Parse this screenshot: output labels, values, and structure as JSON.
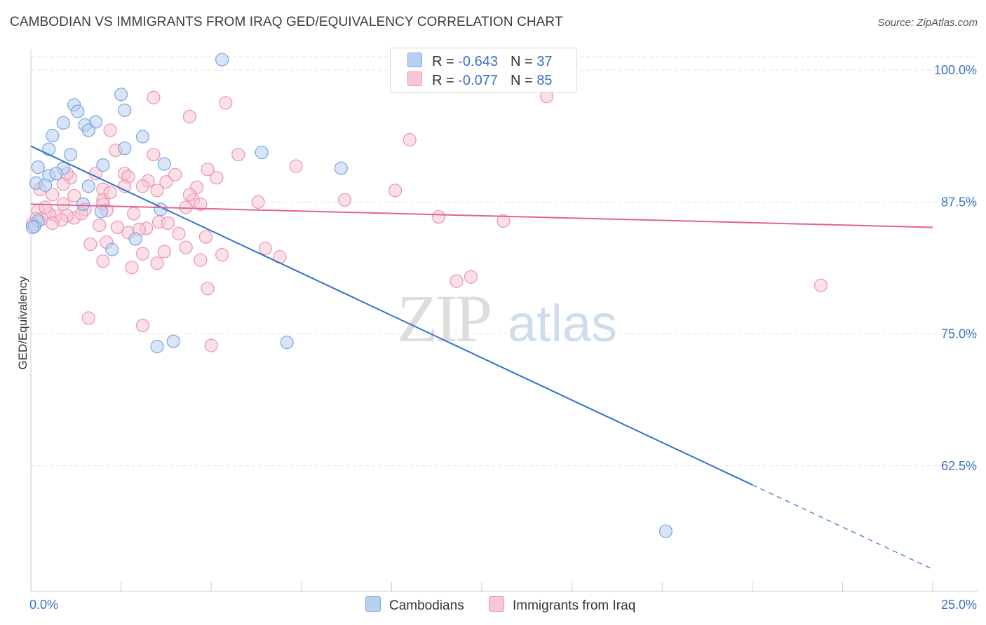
{
  "title": "CAMBODIAN VS IMMIGRANTS FROM IRAQ GED/EQUIVALENCY CORRELATION CHART",
  "source": "Source: ZipAtlas.com",
  "watermark": {
    "zip": "ZIP",
    "atlas": "atlas"
  },
  "colors": {
    "blue_fill": "#b8d0f2",
    "blue_stroke": "#7aa6df",
    "blue_line": "#2f72cc",
    "pink_fill": "#f8c6d6",
    "pink_stroke": "#ea93b0",
    "pink_line": "#e4628c",
    "tick_label": "#3a74c4",
    "grid": "#e3e3e3"
  },
  "legend": {
    "rows": [
      {
        "r_label": "R = ",
        "r_value": "-0.643",
        "n_label": "N = ",
        "n_value": "37"
      },
      {
        "r_label": "R = ",
        "r_value": "-0.077",
        "n_label": "N = ",
        "n_value": "85"
      }
    ]
  },
  "chart_data": {
    "type": "scatter",
    "title": "CAMBODIAN VS IMMIGRANTS FROM IRAQ GED/EQUIVALENCY CORRELATION CHART",
    "xlabel": "",
    "ylabel": "GED/Equivalency",
    "xlim": [
      0,
      25
    ],
    "ylim": [
      50.6,
      102
    ],
    "x_tick_labels": [
      "0.0%",
      "25.0%"
    ],
    "y_ticks": [
      62.5,
      75.0,
      87.5,
      100.0
    ],
    "y_tick_labels": [
      "62.5%",
      "75.0%",
      "87.5%",
      "100.0%"
    ],
    "grid": true,
    "legend_position": "top-center",
    "series": [
      {
        "name": "Cambodians",
        "color": "#b8d0f2",
        "trend": {
          "x": [
            0,
            20
          ],
          "y": [
            92.8,
            60.7
          ],
          "dashed_to": [
            25,
            52.7
          ]
        },
        "points": [
          [
            5.3,
            101.0
          ],
          [
            2.5,
            97.7
          ],
          [
            1.2,
            96.7
          ],
          [
            2.6,
            96.2
          ],
          [
            1.3,
            96.1
          ],
          [
            1.8,
            95.1
          ],
          [
            0.9,
            95.0
          ],
          [
            1.5,
            94.8
          ],
          [
            1.6,
            94.3
          ],
          [
            0.6,
            93.8
          ],
          [
            3.1,
            93.7
          ],
          [
            0.5,
            92.5
          ],
          [
            2.6,
            92.6
          ],
          [
            6.4,
            92.2
          ],
          [
            1.1,
            92.0
          ],
          [
            3.7,
            91.1
          ],
          [
            2.0,
            91.0
          ],
          [
            8.6,
            90.7
          ],
          [
            0.2,
            90.8
          ],
          [
            0.9,
            90.7
          ],
          [
            0.5,
            90.0
          ],
          [
            0.7,
            90.2
          ],
          [
            0.15,
            89.3
          ],
          [
            0.4,
            89.1
          ],
          [
            1.6,
            89.0
          ],
          [
            1.45,
            87.3
          ],
          [
            1.95,
            86.6
          ],
          [
            3.6,
            86.8
          ],
          [
            0.2,
            85.7
          ],
          [
            0.1,
            85.2
          ],
          [
            2.9,
            84.0
          ],
          [
            2.25,
            83.0
          ],
          [
            3.95,
            74.3
          ],
          [
            7.1,
            74.2
          ],
          [
            3.5,
            73.8
          ],
          [
            0.05,
            85.1
          ],
          [
            17.6,
            56.3
          ]
        ]
      },
      {
        "name": "Immigrants from Iraq",
        "color": "#f8c6d6",
        "trend": {
          "x": [
            0,
            25
          ],
          "y": [
            87.3,
            85.1
          ]
        },
        "points": [
          [
            3.4,
            97.4
          ],
          [
            14.3,
            97.5
          ],
          [
            5.4,
            96.9
          ],
          [
            4.4,
            95.6
          ],
          [
            2.2,
            94.3
          ],
          [
            10.5,
            93.4
          ],
          [
            2.35,
            92.4
          ],
          [
            3.4,
            92.0
          ],
          [
            5.75,
            92.0
          ],
          [
            7.35,
            90.9
          ],
          [
            4.9,
            90.6
          ],
          [
            1.8,
            90.2
          ],
          [
            2.6,
            90.2
          ],
          [
            1.1,
            89.8
          ],
          [
            0.9,
            89.2
          ],
          [
            2.7,
            89.9
          ],
          [
            2.0,
            88.7
          ],
          [
            3.75,
            89.4
          ],
          [
            3.25,
            89.5
          ],
          [
            4.6,
            88.9
          ],
          [
            3.1,
            89.0
          ],
          [
            2.6,
            89.0
          ],
          [
            3.5,
            88.6
          ],
          [
            10.1,
            88.6
          ],
          [
            2.0,
            87.7
          ],
          [
            1.2,
            88.1
          ],
          [
            0.6,
            88.2
          ],
          [
            0.9,
            87.3
          ],
          [
            4.5,
            87.7
          ],
          [
            6.3,
            87.5
          ],
          [
            2.0,
            87.3
          ],
          [
            8.7,
            87.7
          ],
          [
            4.3,
            87.0
          ],
          [
            1.5,
            86.8
          ],
          [
            2.1,
            86.7
          ],
          [
            2.85,
            86.4
          ],
          [
            0.7,
            86.2
          ],
          [
            0.5,
            86.4
          ],
          [
            0.2,
            86.7
          ],
          [
            1.2,
            86.0
          ],
          [
            1.0,
            86.2
          ],
          [
            0.85,
            85.8
          ],
          [
            0.3,
            85.9
          ],
          [
            3.55,
            85.6
          ],
          [
            2.4,
            85.1
          ],
          [
            2.7,
            84.6
          ],
          [
            11.3,
            86.1
          ],
          [
            13.1,
            85.7
          ],
          [
            0.6,
            85.5
          ],
          [
            3.2,
            85.0
          ],
          [
            4.1,
            84.5
          ],
          [
            1.65,
            83.5
          ],
          [
            2.1,
            83.7
          ],
          [
            4.3,
            83.2
          ],
          [
            5.3,
            82.5
          ],
          [
            6.5,
            83.1
          ],
          [
            3.7,
            82.8
          ],
          [
            3.1,
            82.6
          ],
          [
            2.0,
            81.9
          ],
          [
            2.8,
            81.3
          ],
          [
            3.5,
            81.7
          ],
          [
            4.7,
            82.0
          ],
          [
            6.9,
            82.3
          ],
          [
            12.2,
            80.4
          ],
          [
            11.8,
            80.0
          ],
          [
            21.9,
            79.6
          ],
          [
            4.9,
            79.3
          ],
          [
            1.6,
            76.5
          ],
          [
            3.1,
            75.8
          ],
          [
            5.0,
            73.9
          ],
          [
            0.15,
            85.9
          ],
          [
            0.05,
            85.4
          ],
          [
            4.0,
            90.1
          ],
          [
            5.15,
            89.8
          ],
          [
            3.8,
            85.5
          ],
          [
            4.4,
            88.2
          ],
          [
            1.4,
            86.4
          ],
          [
            0.25,
            88.7
          ],
          [
            1.9,
            85.3
          ],
          [
            3.0,
            84.9
          ],
          [
            2.2,
            88.4
          ],
          [
            0.4,
            87.0
          ],
          [
            1.0,
            90.2
          ],
          [
            4.7,
            87.3
          ],
          [
            4.85,
            84.2
          ]
        ]
      }
    ]
  }
}
